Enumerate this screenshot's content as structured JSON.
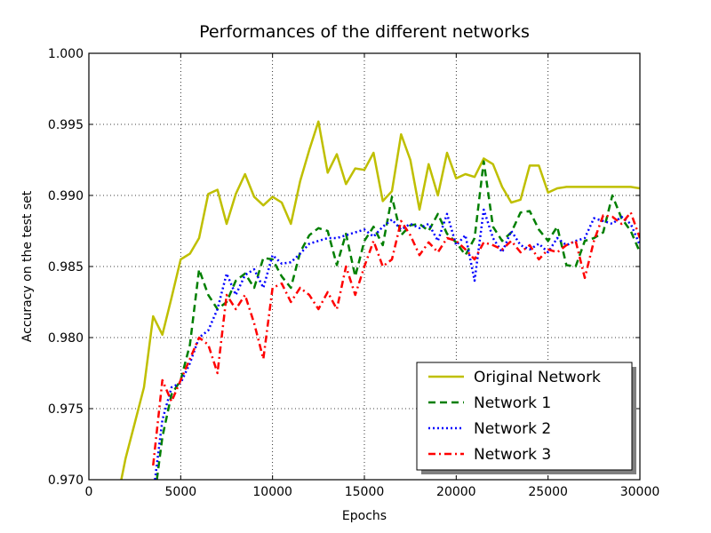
{
  "chart_data": {
    "type": "line",
    "title": "Performances of the different networks",
    "xlabel": "Epochs",
    "ylabel": "Accuracy on the test set",
    "xlim": [
      0,
      30000
    ],
    "ylim": [
      0.97,
      1.0
    ],
    "xticks": [
      0,
      5000,
      10000,
      15000,
      20000,
      25000,
      30000
    ],
    "xtick_labels": [
      "0",
      "5000",
      "10000",
      "15000",
      "20000",
      "25000",
      "30000"
    ],
    "yticks": [
      0.97,
      0.975,
      0.98,
      0.985,
      0.99,
      0.995,
      1.0
    ],
    "ytick_labels": [
      "0.970",
      "0.975",
      "0.980",
      "0.985",
      "0.990",
      "0.995",
      "1.000"
    ],
    "grid": true,
    "legend_position": "bottom-right",
    "series": [
      {
        "name": "Original Network",
        "color": "#bfbf00",
        "style": "solid",
        "x": [
          1500,
          2000,
          2500,
          3000,
          3500,
          4000,
          4500,
          5000,
          5500,
          6000,
          6500,
          7000,
          7500,
          8000,
          8500,
          9000,
          9500,
          10000,
          10500,
          11000,
          11500,
          12000,
          12500,
          13000,
          13500,
          14000,
          14500,
          15000,
          15500,
          16000,
          16500,
          17000,
          17500,
          18000,
          18500,
          19000,
          19500,
          20000,
          20500,
          21000,
          21500,
          22000,
          22500,
          23000,
          23500,
          24000,
          24500,
          25000,
          25500,
          26000,
          26500,
          27000,
          27500,
          28000,
          28500,
          29000,
          29500,
          30000
        ],
        "y": [
          0.9683,
          0.9715,
          0.974,
          0.9765,
          0.9815,
          0.9802,
          0.9828,
          0.9855,
          0.9859,
          0.987,
          0.9901,
          0.9904,
          0.988,
          0.9901,
          0.9915,
          0.9899,
          0.9893,
          0.9899,
          0.9895,
          0.988,
          0.991,
          0.9932,
          0.9952,
          0.9916,
          0.9929,
          0.9908,
          0.9919,
          0.9918,
          0.993,
          0.9896,
          0.9903,
          0.9943,
          0.9925,
          0.989,
          0.9922,
          0.99,
          0.993,
          0.9912,
          0.9915,
          0.9913,
          0.9926,
          0.9922,
          0.9906,
          0.9895,
          0.9897,
          0.9921,
          0.9921,
          0.9902,
          0.9905,
          0.9906,
          0.9906,
          0.9906,
          0.9906,
          0.9906,
          0.9906,
          0.9906,
          0.9906,
          0.9905
        ]
      },
      {
        "name": "Network 1",
        "color": "#007f00",
        "style": "dashed",
        "x": [
          3700,
          4000,
          4500,
          5000,
          5500,
          6000,
          6500,
          7000,
          7500,
          8000,
          8500,
          9000,
          9500,
          10000,
          10500,
          11000,
          11500,
          12000,
          12500,
          13000,
          13500,
          14000,
          14500,
          15000,
          15500,
          16000,
          16500,
          17000,
          17500,
          18000,
          18500,
          19000,
          19500,
          20000,
          20500,
          21000,
          21500,
          22000,
          22500,
          23000,
          23500,
          24000,
          24500,
          25000,
          25500,
          26000,
          26500,
          27000,
          27500,
          28000,
          28500,
          29000,
          29500,
          30000
        ],
        "y": [
          0.97,
          0.973,
          0.976,
          0.977,
          0.9795,
          0.9848,
          0.983,
          0.982,
          0.9825,
          0.984,
          0.9845,
          0.9835,
          0.9856,
          0.9855,
          0.9843,
          0.9835,
          0.986,
          0.9872,
          0.9877,
          0.9875,
          0.9851,
          0.9873,
          0.9843,
          0.9868,
          0.9878,
          0.9865,
          0.9899,
          0.9872,
          0.9879,
          0.988,
          0.9875,
          0.9887,
          0.9873,
          0.9867,
          0.9858,
          0.987,
          0.9924,
          0.9878,
          0.9868,
          0.9874,
          0.9888,
          0.9889,
          0.9876,
          0.9868,
          0.9878,
          0.9851,
          0.985,
          0.9868,
          0.987,
          0.9874,
          0.99,
          0.9884,
          0.9875,
          0.986
        ]
      },
      {
        "name": "Network 2",
        "color": "#0000ff",
        "style": "dotted",
        "x": [
          3600,
          4000,
          4500,
          5000,
          5500,
          6000,
          6500,
          7000,
          7500,
          8000,
          8500,
          9000,
          9500,
          10000,
          10500,
          11000,
          11500,
          12000,
          12500,
          13000,
          13500,
          14000,
          14500,
          15000,
          15500,
          16000,
          16500,
          17000,
          17500,
          18000,
          18500,
          19000,
          19500,
          20000,
          20500,
          21000,
          21500,
          22000,
          22500,
          23000,
          23500,
          24000,
          24500,
          25000,
          25500,
          26000,
          26500,
          27000,
          27500,
          28000,
          28500,
          29000,
          29500,
          30000
        ],
        "y": [
          0.97,
          0.9742,
          0.9765,
          0.9768,
          0.9782,
          0.98,
          0.9805,
          0.982,
          0.9845,
          0.983,
          0.9844,
          0.9848,
          0.9835,
          0.9858,
          0.9852,
          0.9853,
          0.9859,
          0.9866,
          0.9868,
          0.987,
          0.987,
          0.9872,
          0.9874,
          0.9876,
          0.9871,
          0.9878,
          0.9883,
          0.9876,
          0.988,
          0.9877,
          0.988,
          0.9868,
          0.9887,
          0.9865,
          0.9872,
          0.984,
          0.989,
          0.987,
          0.986,
          0.9875,
          0.9865,
          0.9862,
          0.9866,
          0.986,
          0.987,
          0.9865,
          0.9868,
          0.987,
          0.9884,
          0.9882,
          0.988,
          0.9885,
          0.988,
          0.9865
        ]
      },
      {
        "name": "Network 3",
        "color": "#ff0000",
        "style": "dashdot",
        "x": [
          3500,
          4000,
          4500,
          5000,
          5500,
          6000,
          6500,
          7000,
          7500,
          8000,
          8500,
          9000,
          9500,
          10000,
          10500,
          11000,
          11500,
          12000,
          12500,
          13000,
          13500,
          14000,
          14500,
          15000,
          15500,
          16000,
          16500,
          17000,
          17500,
          18000,
          18500,
          19000,
          19500,
          20000,
          20500,
          21000,
          21500,
          22000,
          22500,
          23000,
          23500,
          24000,
          24500,
          25000,
          25500,
          26000,
          26500,
          27000,
          27500,
          28000,
          28500,
          29000,
          29500,
          30000
        ],
        "y": [
          0.971,
          0.977,
          0.9755,
          0.977,
          0.9785,
          0.98,
          0.9795,
          0.9775,
          0.983,
          0.982,
          0.983,
          0.981,
          0.9785,
          0.9835,
          0.9838,
          0.9825,
          0.9835,
          0.983,
          0.982,
          0.9832,
          0.982,
          0.985,
          0.983,
          0.985,
          0.9868,
          0.985,
          0.9855,
          0.9882,
          0.9872,
          0.9858,
          0.9867,
          0.986,
          0.987,
          0.9868,
          0.9862,
          0.9855,
          0.9867,
          0.9865,
          0.9862,
          0.9868,
          0.986,
          0.9865,
          0.9855,
          0.9862,
          0.986,
          0.9865,
          0.9868,
          0.9842,
          0.9868,
          0.9886,
          0.9885,
          0.988,
          0.9888,
          0.987
        ]
      }
    ]
  }
}
